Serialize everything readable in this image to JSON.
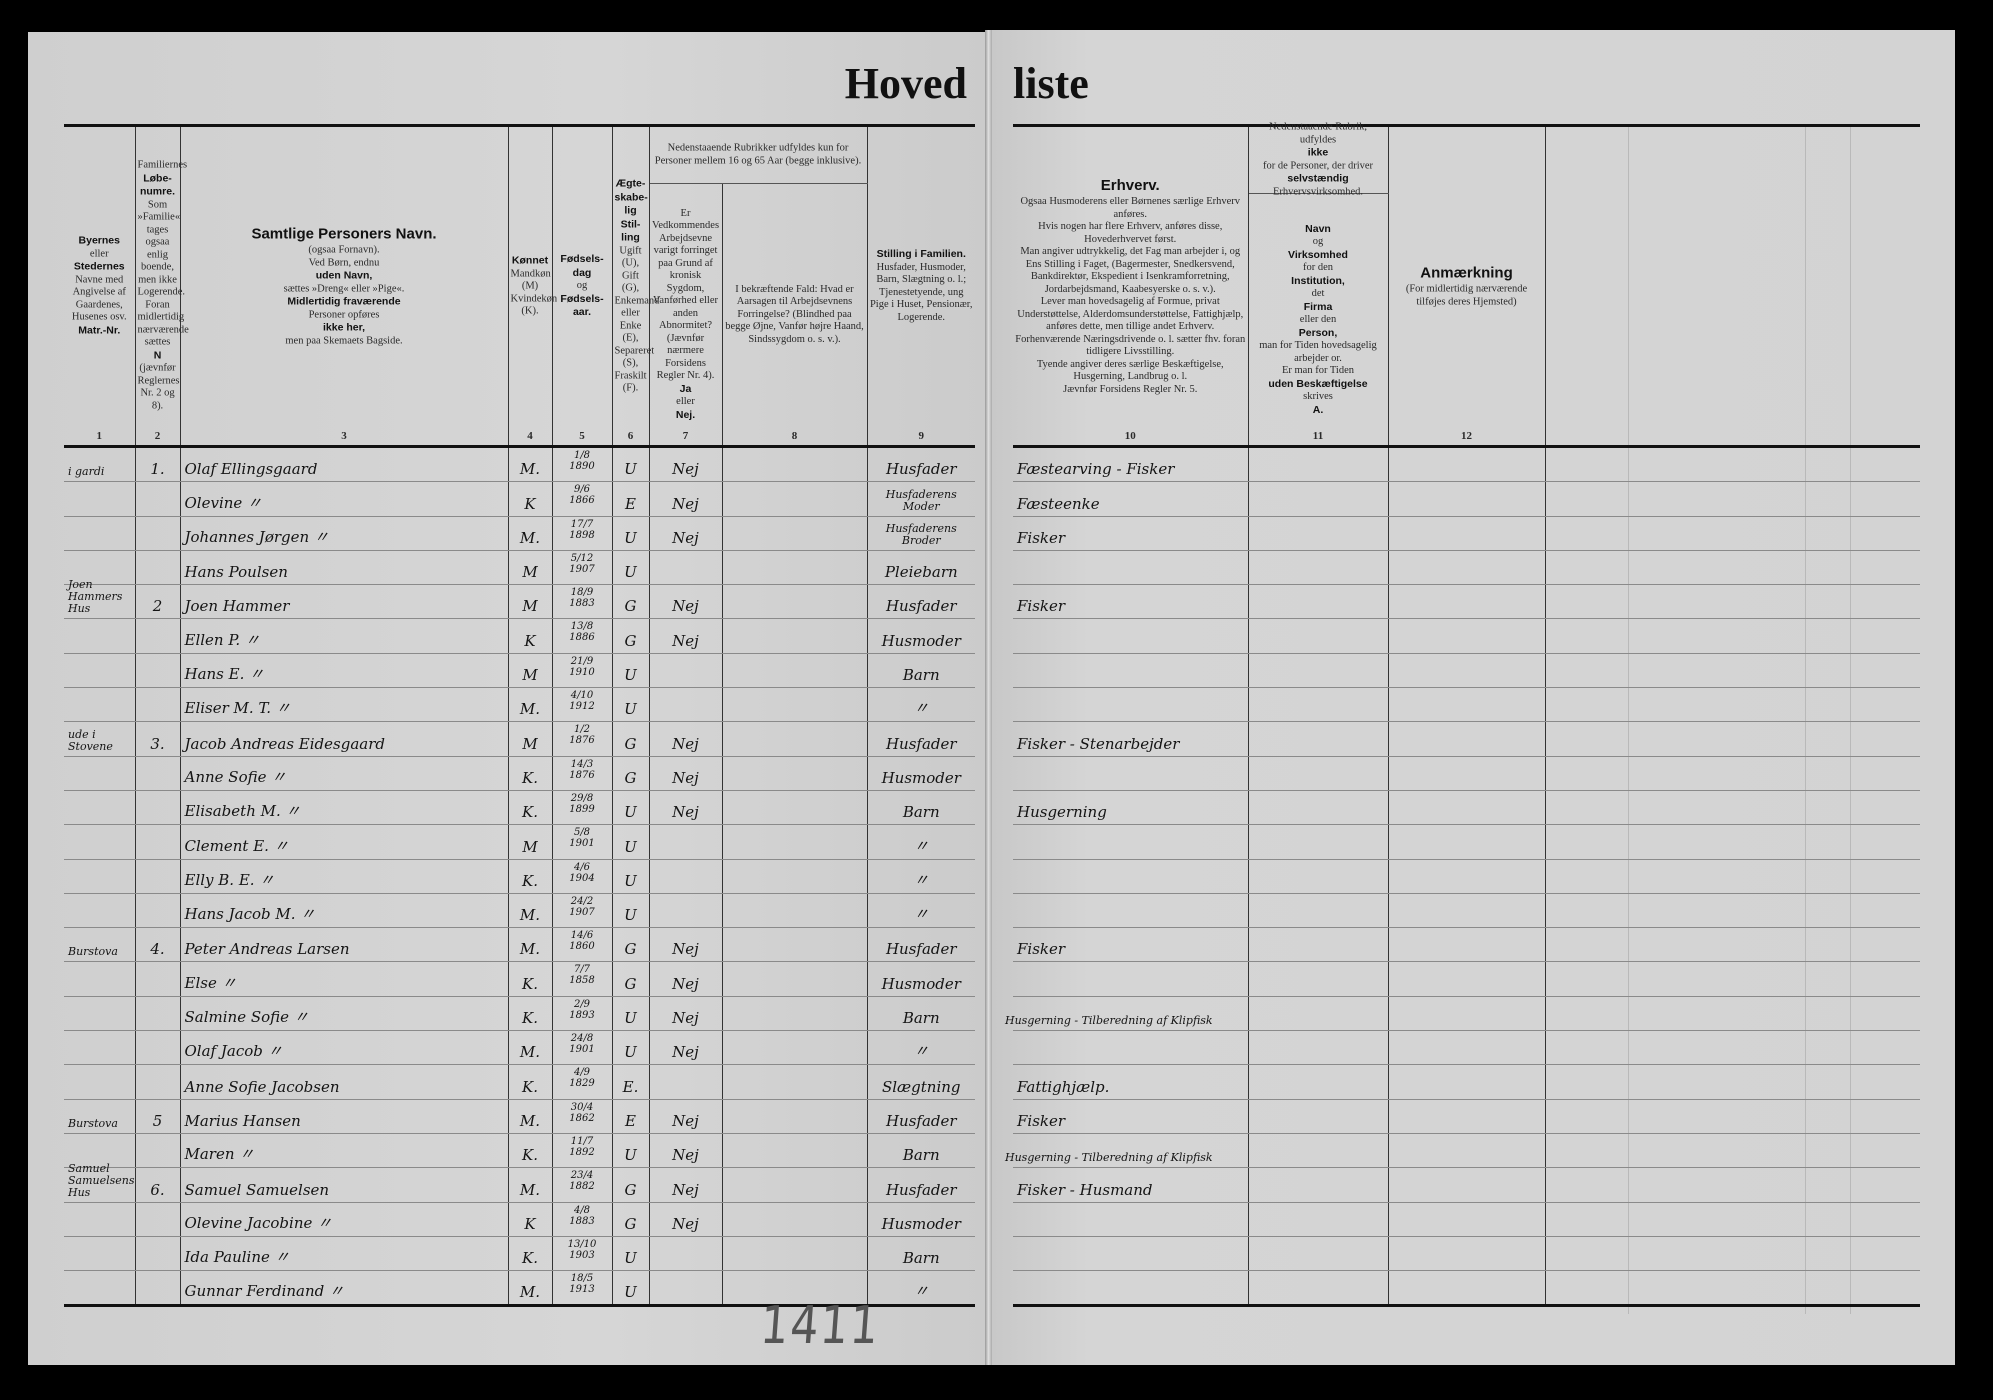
{
  "title": {
    "left": "Hoved",
    "right": "liste"
  },
  "headers": {
    "col1": {
      "num": "1",
      "segs": [
        {
          "t": "Byernes",
          "b": true
        },
        {
          "t": "eller"
        },
        {
          "t": "Stedernes",
          "b": true
        },
        {
          "t": "Navne med Angivelse af Gaardenes, Husenes osv."
        },
        {
          "t": "Matr.-Nr.",
          "b": true
        }
      ]
    },
    "col2": {
      "num": "2",
      "segs": [
        {
          "t": "Familiernes"
        },
        {
          "t": "Løbe-numre.",
          "b": true
        },
        {
          "t": "Som »Familie« tages ogsaa enlig boende, men ikke Logerende. Foran midlertidig nærværende sættes"
        },
        {
          "t": "N",
          "b": true
        },
        {
          "t": "(jævnfør Reglernes Nr. 2 og 8)."
        }
      ]
    },
    "col3": {
      "num": "3",
      "segs": [
        {
          "t": "Samtlige Personers Navn.",
          "b": true,
          "big": true
        },
        {
          "t": "(ogsaa Fornavn)."
        },
        {
          "t": "Ved Børn, endnu"
        },
        {
          "t": "uden Navn,",
          "b": true
        },
        {
          "t": "sættes »Dreng« eller »Pige«."
        },
        {
          "t": "Midlertidig fraværende",
          "b": true
        },
        {
          "t": "Personer opføres"
        },
        {
          "t": "ikke her,",
          "b": true
        },
        {
          "t": "men paa Skemaets Bagside."
        }
      ]
    },
    "col4": {
      "num": "4",
      "segs": [
        {
          "t": "Kønnet",
          "b": true
        },
        {
          "t": "Mandkøn (M) Kvindekøn (K)."
        }
      ]
    },
    "col5": {
      "num": "5",
      "segs": [
        {
          "t": "Fødsels-dag",
          "b": true
        },
        {
          "t": "og"
        },
        {
          "t": "Fødsels-aar.",
          "b": true
        }
      ]
    },
    "col6": {
      "num": "6",
      "segs": [
        {
          "t": "Ægte-skabe-lig Stil-ling",
          "b": true
        },
        {
          "t": "Ugift (U), Gift (G), Enkemand eller Enke (E), Separeret (S), Fraskilt (F)."
        }
      ]
    },
    "col7_8_super": "Nedenstaaende Rubrikker udfyldes kun for Personer mellem 16 og 65 Aar (begge inklusive).",
    "col7": {
      "num": "7",
      "segs": [
        {
          "t": "Er Vedkommendes Arbejdsevne varigt forringet paa Grund af kronisk Sygdom, Vanførhed eller anden Abnormitet? (Jævnfør nærmere Forsidens Regler Nr. 4)."
        },
        {
          "t": "Ja",
          "b": true
        },
        {
          "t": "eller"
        },
        {
          "t": "Nej.",
          "b": true
        }
      ]
    },
    "col8": {
      "num": "8",
      "segs": [
        {
          "t": "I bekræftende Fald: Hvad er Aarsagen til Arbejdsevnens Forringelse? (Blindhed paa begge Øjne, Vanfør højre Haand, Sindssygdom o. s. v.)."
        }
      ]
    },
    "col9": {
      "num": "9",
      "segs": [
        {
          "t": "Stilling i Familien.",
          "b": true
        },
        {
          "t": "Husfader, Husmoder, Barn, Slægtning o. l.; Tjenestetyende, ung Pige i Huset, Pensionær, Logerende."
        }
      ]
    },
    "col10": {
      "num": "10",
      "segs": [
        {
          "t": "Erhverv.",
          "b": true,
          "big": true
        },
        {
          "t": "Ogsaa Husmoderens eller Børnenes særlige Erhverv anføres."
        },
        {
          "t": "Hvis nogen har flere Erhverv, anføres disse, Hovederhvervet først."
        },
        {
          "t": "Man angiver udtrykkelig, det Fag man arbejder i, og Ens Stilling i Faget, (Bagermester, Snedkersvend, Bankdirektør, Ekspedient i Isenkramforretning, Jordarbejdsmand, Kaabesyerske o. s. v.)."
        },
        {
          "t": "Lever man hovedsagelig af Formue, privat Understøttelse, Alderdomsunderstøttelse, Fattighjælp, anføres dette, men tillige andet Erhverv."
        },
        {
          "t": "Forhenværende Næringsdrivende o. l. sætter fhv. foran tidligere Livsstilling."
        },
        {
          "t": "Tyende angiver deres særlige Beskæftigelse, Husgerning, Landbrug o. l."
        },
        {
          "t": "Jævnfør Forsidens Regler Nr. 5."
        }
      ]
    },
    "col11_super": [
      {
        "t": "Nedenstaaende Rubrik, udfyldes"
      },
      {
        "t": "ikke",
        "b": true
      },
      {
        "t": "for de Personer, der driver"
      },
      {
        "t": "selvstændig",
        "b": true
      },
      {
        "t": "Erhvervsvirksomhed."
      }
    ],
    "col11": {
      "num": "11",
      "segs": [
        {
          "t": "Navn",
          "b": true
        },
        {
          "t": "og"
        },
        {
          "t": "Virksomhed",
          "b": true
        },
        {
          "t": "for den"
        },
        {
          "t": "Institution,",
          "b": true
        },
        {
          "t": "det"
        },
        {
          "t": "Firma",
          "b": true
        },
        {
          "t": "eller den"
        },
        {
          "t": "Person,",
          "b": true
        },
        {
          "t": "man for Tiden hovedsagelig arbejder or."
        },
        {
          "t": "Er man for Tiden"
        },
        {
          "t": "uden Beskæftigelse",
          "b": true
        },
        {
          "t": "skrives"
        },
        {
          "t": "A.",
          "b": true
        }
      ]
    },
    "col12": {
      "num": "12",
      "segs": [
        {
          "t": "Anmærkning",
          "b": true,
          "big": true
        },
        {
          "t": "(For midlertidig nærværende tilføjes deres Hjemsted)"
        }
      ]
    }
  },
  "persons": [
    {
      "place": "i gardi",
      "family_no": "1.",
      "name": "Olaf Ellingsgaard",
      "sex": "M.",
      "birth_day": "1/8",
      "birth_year": "1890",
      "marital": "U",
      "work_reduced": "Nej",
      "family_position": "Husfader",
      "occupation": "Fæstearving - Fisker"
    },
    {
      "place": "",
      "family_no": "",
      "name": "Olevine 〃",
      "sex": "K",
      "birth_day": "9/6",
      "birth_year": "1866",
      "marital": "E",
      "work_reduced": "Nej",
      "family_position": "Husfaderens Moder",
      "occupation": "Fæsteenke"
    },
    {
      "place": "",
      "family_no": "",
      "name": "Johannes Jørgen 〃",
      "sex": "M.",
      "birth_day": "17/7",
      "birth_year": "1898",
      "marital": "U",
      "work_reduced": "Nej",
      "family_position": "Husfaderens Broder",
      "occupation": "Fisker"
    },
    {
      "place": "",
      "family_no": "",
      "name": "Hans Poulsen",
      "sex": "M",
      "birth_day": "5/12",
      "birth_year": "1907",
      "marital": "U",
      "work_reduced": "",
      "family_position": "Pleiebarn",
      "occupation": ""
    },
    {
      "place": "Joen Hammers Hus",
      "family_no": "2",
      "name": "Joen Hammer",
      "sex": "M",
      "birth_day": "18/9",
      "birth_year": "1883",
      "marital": "G",
      "work_reduced": "Nej",
      "family_position": "Husfader",
      "occupation": "Fisker"
    },
    {
      "place": "",
      "family_no": "",
      "name": "Ellen P. 〃",
      "sex": "K",
      "birth_day": "13/8",
      "birth_year": "1886",
      "marital": "G",
      "work_reduced": "Nej",
      "family_position": "Husmoder",
      "occupation": ""
    },
    {
      "place": "",
      "family_no": "",
      "name": "Hans E. 〃",
      "sex": "M",
      "birth_day": "21/9",
      "birth_year": "1910",
      "marital": "U",
      "work_reduced": "",
      "family_position": "Barn",
      "occupation": ""
    },
    {
      "place": "",
      "family_no": "",
      "name": "Eliser M. T. 〃",
      "sex": "M.",
      "birth_day": "4/10",
      "birth_year": "1912",
      "marital": "U",
      "work_reduced": "",
      "family_position": "〃",
      "occupation": ""
    },
    {
      "place": "ude i Stovene",
      "family_no": "3.",
      "name": "Jacob Andreas Eidesgaard",
      "sex": "M",
      "birth_day": "1/2",
      "birth_year": "1876",
      "marital": "G",
      "work_reduced": "Nej",
      "family_position": "Husfader",
      "occupation": "Fisker - Stenarbejder"
    },
    {
      "place": "",
      "family_no": "",
      "name": "Anne Sofie 〃",
      "sex": "K.",
      "birth_day": "14/3",
      "birth_year": "1876",
      "marital": "G",
      "work_reduced": "Nej",
      "family_position": "Husmoder",
      "occupation": ""
    },
    {
      "place": "",
      "family_no": "",
      "name": "Elisabeth M. 〃",
      "sex": "K.",
      "birth_day": "29/8",
      "birth_year": "1899",
      "marital": "U",
      "work_reduced": "Nej",
      "family_position": "Barn",
      "occupation": "Husgerning"
    },
    {
      "place": "",
      "family_no": "",
      "name": "Clement E. 〃",
      "sex": "M",
      "birth_day": "5/8",
      "birth_year": "1901",
      "marital": "U",
      "work_reduced": "",
      "family_position": "〃",
      "occupation": ""
    },
    {
      "place": "",
      "family_no": "",
      "name": "Elly B. E. 〃",
      "sex": "K.",
      "birth_day": "4/6",
      "birth_year": "1904",
      "marital": "U",
      "work_reduced": "",
      "family_position": "〃",
      "occupation": ""
    },
    {
      "place": "",
      "family_no": "",
      "name": "Hans Jacob M. 〃",
      "sex": "M.",
      "birth_day": "24/2",
      "birth_year": "1907",
      "marital": "U",
      "work_reduced": "",
      "family_position": "〃",
      "occupation": ""
    },
    {
      "place": "Burstova",
      "family_no": "4.",
      "name": "Peter Andreas Larsen",
      "sex": "M.",
      "birth_day": "14/6",
      "birth_year": "1860",
      "marital": "G",
      "work_reduced": "Nej",
      "family_position": "Husfader",
      "occupation": "Fisker"
    },
    {
      "place": "",
      "family_no": "",
      "name": "Else 〃",
      "sex": "K.",
      "birth_day": "7/7",
      "birth_year": "1858",
      "marital": "G",
      "work_reduced": "Nej",
      "family_position": "Husmoder",
      "occupation": ""
    },
    {
      "place": "",
      "family_no": "",
      "name": "Salmine Sofie 〃",
      "sex": "K.",
      "birth_day": "2/9",
      "birth_year": "1893",
      "marital": "U",
      "work_reduced": "Nej",
      "family_position": "Barn",
      "occupation": "Husgerning - Tilberedning af Klipfisk"
    },
    {
      "place": "",
      "family_no": "",
      "name": "Olaf Jacob 〃",
      "sex": "M.",
      "birth_day": "24/8",
      "birth_year": "1901",
      "marital": "U",
      "work_reduced": "Nej",
      "family_position": "〃",
      "occupation": ""
    },
    {
      "place": "",
      "family_no": "",
      "name": "Anne Sofie Jacobsen",
      "sex": "K.",
      "birth_day": "4/9",
      "birth_year": "1829",
      "marital": "E.",
      "work_reduced": "",
      "family_position": "Slægtning",
      "occupation": "Fattighjælp."
    },
    {
      "place": "Burstova",
      "family_no": "5",
      "name": "Marius Hansen",
      "sex": "M.",
      "birth_day": "30/4",
      "birth_year": "1862",
      "marital": "E",
      "work_reduced": "Nej",
      "family_position": "Husfader",
      "occupation": "Fisker"
    },
    {
      "place": "",
      "family_no": "",
      "name": "Maren 〃",
      "sex": "K.",
      "birth_day": "11/7",
      "birth_year": "1892",
      "marital": "U",
      "work_reduced": "Nej",
      "family_position": "Barn",
      "occupation": "Husgerning - Tilberedning af Klipfisk"
    },
    {
      "place": "Samuel Samuelsens Hus",
      "family_no": "6.",
      "name": "Samuel Samuelsen",
      "sex": "M.",
      "birth_day": "23/4",
      "birth_year": "1882",
      "marital": "G",
      "work_reduced": "Nej",
      "family_position": "Husfader",
      "occupation": "Fisker - Husmand"
    },
    {
      "place": "",
      "family_no": "",
      "name": "Olevine Jacobine 〃",
      "sex": "K",
      "birth_day": "4/8",
      "birth_year": "1883",
      "marital": "G",
      "work_reduced": "Nej",
      "family_position": "Husmoder",
      "occupation": ""
    },
    {
      "place": "",
      "family_no": "",
      "name": "Ida Pauline 〃",
      "sex": "K.",
      "birth_day": "13/10",
      "birth_year": "1903",
      "marital": "U",
      "work_reduced": "",
      "family_position": "Barn",
      "occupation": ""
    },
    {
      "place": "",
      "family_no": "",
      "name": "Gunnar Ferdinand 〃",
      "sex": "M.",
      "birth_day": "18/5",
      "birth_year": "1913",
      "marital": "U",
      "work_reduced": "",
      "family_position": "〃",
      "occupation": ""
    }
  ],
  "pencil_note": "1411"
}
